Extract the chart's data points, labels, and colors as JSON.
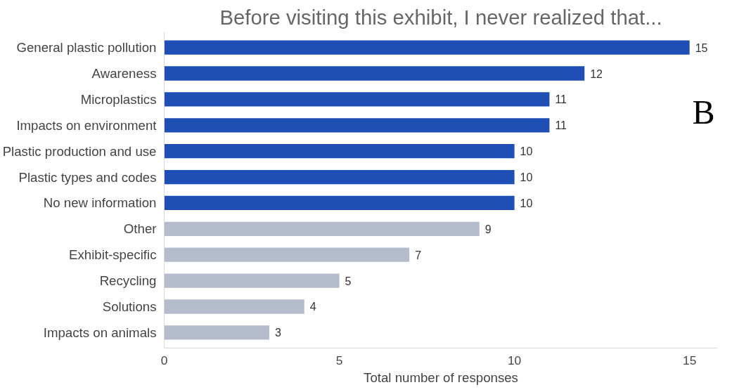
{
  "chart_data": {
    "type": "bar",
    "orientation": "horizontal",
    "title": "Before visiting this exhibit, I never realized that...",
    "xlabel": "Total number of responses",
    "categories": [
      "General plastic pollution",
      "Awareness",
      "Microplastics",
      "Impacts on environment",
      "Plastic production and use",
      "Plastic types and codes",
      "No new information",
      "Other",
      "Exhibit-specific",
      "Recycling",
      "Solutions",
      "Impacts on animals"
    ],
    "values": [
      15,
      12,
      11,
      11,
      10,
      10,
      10,
      9,
      7,
      5,
      4,
      3
    ],
    "colors": [
      "#1f4eb4",
      "#1f4eb4",
      "#1f4eb4",
      "#1f4eb4",
      "#1f4eb4",
      "#1f4eb4",
      "#1f4eb4",
      "#b4bccb",
      "#b4bccb",
      "#b4bccb",
      "#b4bccb",
      "#b4bccb"
    ],
    "xlim": [
      0,
      15.8
    ],
    "xticks": [
      0,
      5,
      10,
      15
    ],
    "grid": false,
    "data_labels": true,
    "annotations": [
      {
        "text": "B"
      }
    ]
  }
}
